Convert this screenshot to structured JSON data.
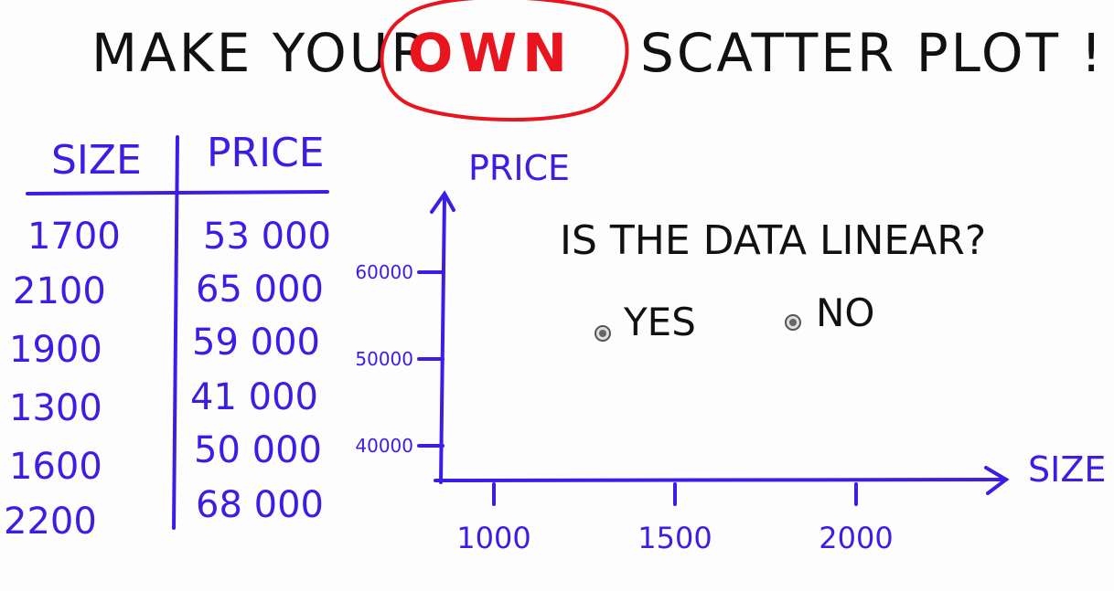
{
  "title": {
    "before": "MAKE YOUR",
    "highlight": "OWN",
    "after": "SCATTER PLOT !"
  },
  "table": {
    "headers": [
      "SIZE",
      "PRICE"
    ],
    "rows": [
      {
        "size": "1700",
        "price": "53 000"
      },
      {
        "size": "2100",
        "price": "65 000"
      },
      {
        "size": "1900",
        "price": "59 000"
      },
      {
        "size": "1300",
        "price": "41 000"
      },
      {
        "size": "1600",
        "price": "50 000"
      },
      {
        "size": "2200",
        "price": "68 000"
      }
    ]
  },
  "quiz": {
    "question": "IS THE DATA LINEAR?",
    "options": [
      {
        "label": "YES"
      },
      {
        "label": "NO"
      }
    ]
  },
  "chart_data": {
    "type": "scatter",
    "xlabel": "SIZE",
    "ylabel": "PRICE",
    "x_ticks": [
      {
        "value": 1000,
        "label": "1000"
      },
      {
        "value": 1500,
        "label": "1500"
      },
      {
        "value": 2000,
        "label": "2000"
      }
    ],
    "y_ticks": [
      {
        "value": 40000,
        "label": "40000"
      },
      {
        "value": 50000,
        "label": "50000"
      },
      {
        "value": 60000,
        "label": "60000"
      }
    ],
    "points": []
  },
  "colors": {
    "ink": "#3b1ee6",
    "title": "#111111",
    "accent": "#e8141e"
  }
}
